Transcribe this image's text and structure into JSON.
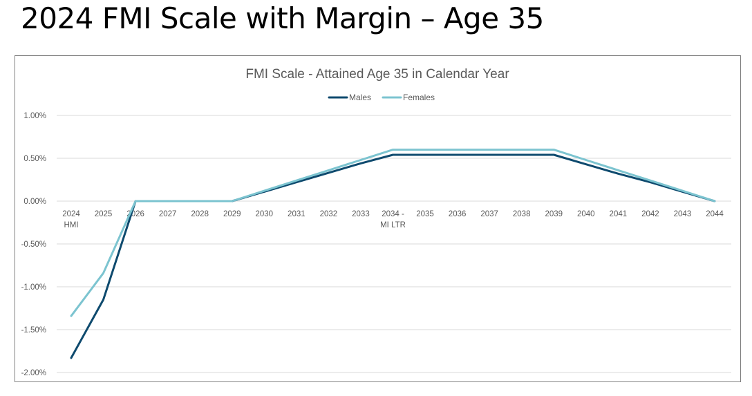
{
  "slide": {
    "title": "2024 FMI Scale with Margin – Age 35"
  },
  "chart_data": {
    "type": "line",
    "title": "FMI Scale - Attained Age 35 in Calendar Year",
    "categories": [
      [
        "2024",
        "HMI"
      ],
      [
        "2025"
      ],
      [
        "2026"
      ],
      [
        "2027"
      ],
      [
        "2028"
      ],
      [
        "2029"
      ],
      [
        "2030"
      ],
      [
        "2031"
      ],
      [
        "2032"
      ],
      [
        "2033"
      ],
      [
        "2034 -",
        "MI LTR"
      ],
      [
        "2035"
      ],
      [
        "2036"
      ],
      [
        "2037"
      ],
      [
        "2038"
      ],
      [
        "2039"
      ],
      [
        "2040"
      ],
      [
        "2041"
      ],
      [
        "2042"
      ],
      [
        "2043"
      ],
      [
        "2044"
      ]
    ],
    "series": [
      {
        "name": "Males",
        "color": "#0e4a6e",
        "values": [
          -1.83,
          -1.15,
          0.0,
          0.0,
          0.0,
          0.0,
          0.11,
          0.22,
          0.33,
          0.44,
          0.54,
          0.54,
          0.54,
          0.54,
          0.54,
          0.54,
          0.43,
          0.32,
          0.22,
          0.11,
          0.0
        ]
      },
      {
        "name": "Females",
        "color": "#7cc4d0",
        "values": [
          -1.34,
          -0.84,
          0.0,
          0.0,
          0.0,
          0.0,
          0.12,
          0.24,
          0.36,
          0.48,
          0.6,
          0.6,
          0.6,
          0.6,
          0.6,
          0.6,
          0.48,
          0.36,
          0.24,
          0.12,
          0.0
        ]
      }
    ],
    "yticks": [
      "1.00%",
      "0.50%",
      "0.00%",
      "-0.50%",
      "-1.00%",
      "-1.50%",
      "-2.00%"
    ],
    "ylim": [
      -2.0,
      1.0
    ],
    "ytick_step": 0.5,
    "grid": true,
    "legend_position": "top-center"
  }
}
